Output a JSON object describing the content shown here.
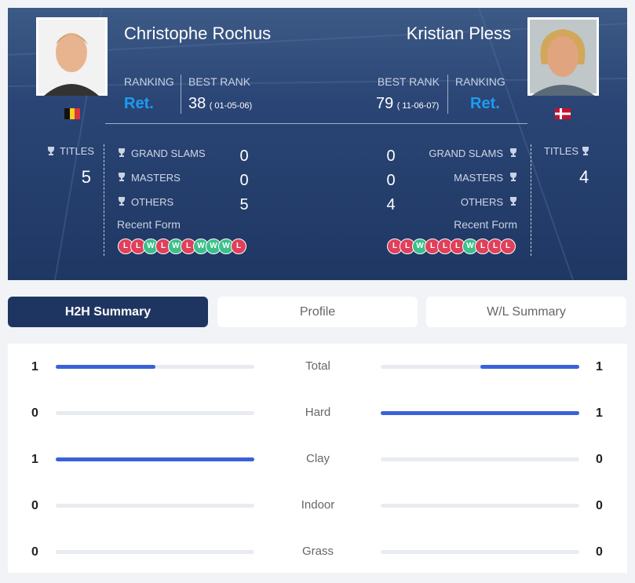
{
  "labels": {
    "ranking": "RANKING",
    "best_rank": "BEST RANK",
    "titles": "TITLES",
    "grand_slams": "GRAND SLAMS",
    "masters": "MASTERS",
    "others": "OTHERS",
    "recent_form": "Recent Form"
  },
  "player1": {
    "name": "Christophe Rochus",
    "ranking": "Ret.",
    "best_rank": 38,
    "best_rank_date": "( 01-05-06)",
    "titles": 5,
    "grand_slams": 0,
    "masters": 0,
    "others": 5,
    "recent_form": [
      "L",
      "L",
      "W",
      "L",
      "W",
      "L",
      "W",
      "W",
      "W",
      "L"
    ]
  },
  "player2": {
    "name": "Kristian Pless",
    "ranking": "Ret.",
    "best_rank": 79,
    "best_rank_date": "( 11-06-07)",
    "titles": 4,
    "grand_slams": 0,
    "masters": 0,
    "others": 4,
    "recent_form": [
      "L",
      "L",
      "W",
      "L",
      "L",
      "L",
      "W",
      "L",
      "L",
      "L"
    ]
  },
  "tabs": [
    "H2H Summary",
    "Profile",
    "W/L Summary"
  ],
  "h2h": [
    {
      "label": "Total",
      "player1": 1,
      "player2": 1
    },
    {
      "label": "Hard",
      "player1": 0,
      "player2": 1
    },
    {
      "label": "Clay",
      "player1": 1,
      "player2": 0
    },
    {
      "label": "Indoor",
      "player1": 0,
      "player2": 0
    },
    {
      "label": "Grass",
      "player1": 0,
      "player2": 0
    }
  ]
}
